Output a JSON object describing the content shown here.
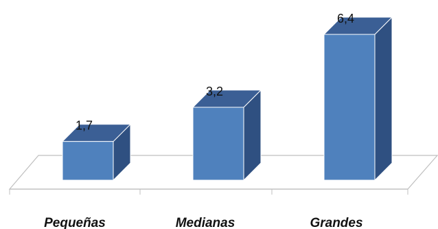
{
  "chart_data": {
    "type": "bar",
    "style": "3d-column",
    "categories": [
      "Pequeñas",
      "Medianas",
      "Grandes"
    ],
    "values": [
      1.7,
      3.2,
      6.4
    ],
    "value_labels": [
      "1,7",
      "3,2",
      "6,4"
    ],
    "title": "",
    "xlabel": "",
    "ylabel": "",
    "ylim": [
      0,
      6.4
    ],
    "grid": false,
    "legend": "none",
    "colors": {
      "bar_front": "#4f81bd",
      "bar_side": "#2f5081",
      "bar_top": "#3b5f95",
      "floor_edge": "#bfbfbf"
    }
  }
}
